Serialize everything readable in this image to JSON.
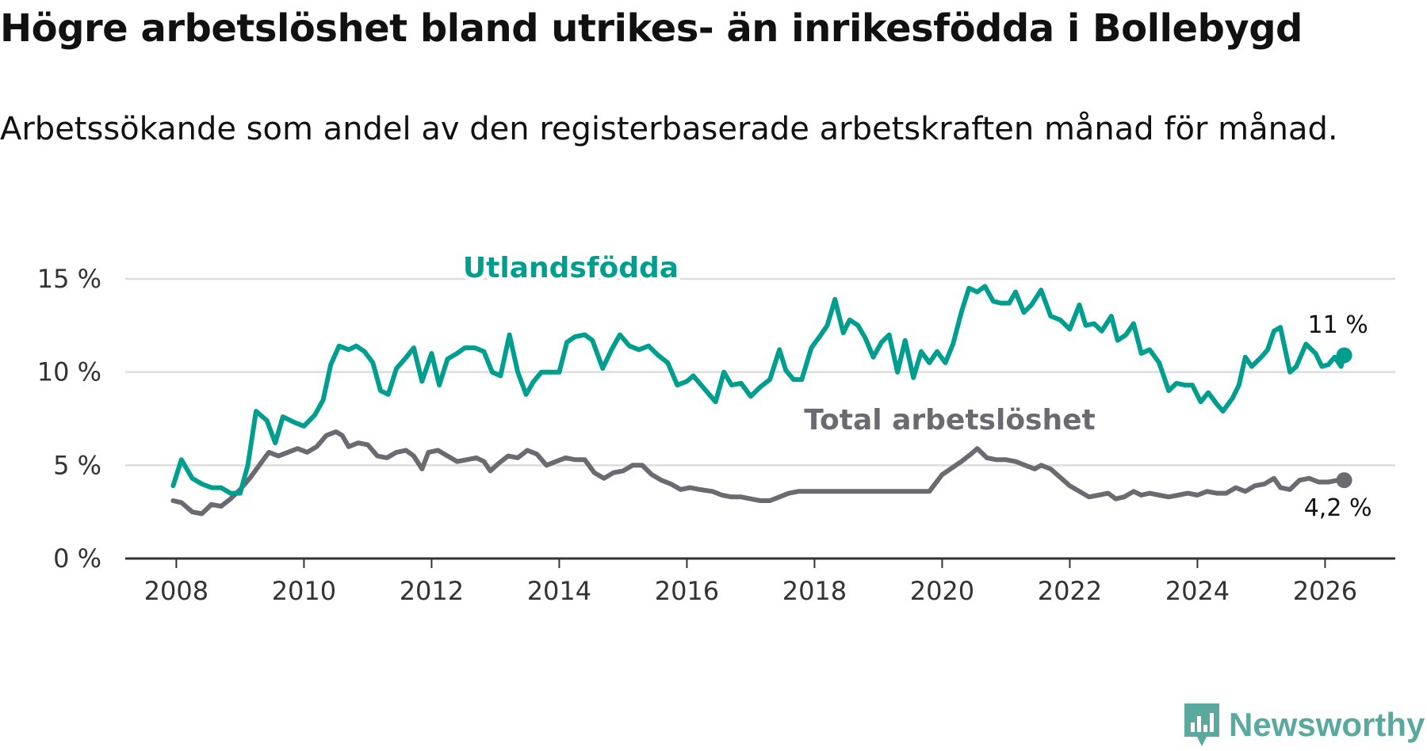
{
  "title": "Högre arbetslöshet bland utrikes- än inrikesfödda i Bollebygd",
  "subtitle": "Arbetssökande som andel av den registerbaserade arbetskraften månad för månad.",
  "brand": {
    "name": "Newsworthy",
    "icon": "newsworthy-logo-icon"
  },
  "colors": {
    "utlandsfodda": "#009e8e",
    "total": "#6a6a70",
    "grid": "#dddddd",
    "axis": "#333333",
    "brand": "#5aa99e"
  },
  "chart_data": {
    "type": "line",
    "title": "Högre arbetslöshet bland utrikes- än inrikesfödda i Bollebygd",
    "xlabel": "",
    "ylabel": "",
    "xlim": [
      2007.2,
      2027.1
    ],
    "ylim": [
      0,
      15
    ],
    "x_ticks": [
      2008,
      2010,
      2012,
      2014,
      2016,
      2018,
      2020,
      2022,
      2024,
      2026
    ],
    "x_tick_labels": [
      "2008",
      "2010",
      "2012",
      "2014",
      "2016",
      "2018",
      "2020",
      "2022",
      "2024",
      "2026"
    ],
    "y_ticks": [
      0,
      5,
      10,
      15
    ],
    "y_tick_labels": [
      "0 %",
      "5 %",
      "10 %",
      "15 %"
    ],
    "grid": true,
    "series": [
      {
        "name": "Utlandsfödda",
        "label": "Utlandsfödda",
        "end_label": "11 %",
        "points": [
          [
            2007.95,
            3.9
          ],
          [
            2008.08,
            5.3
          ],
          [
            2008.25,
            4.3
          ],
          [
            2008.4,
            4.0
          ],
          [
            2008.55,
            3.8
          ],
          [
            2008.7,
            3.8
          ],
          [
            2008.85,
            3.5
          ],
          [
            2009.0,
            3.5
          ],
          [
            2009.12,
            5.0
          ],
          [
            2009.25,
            7.9
          ],
          [
            2009.42,
            7.4
          ],
          [
            2009.55,
            6.2
          ],
          [
            2009.67,
            7.6
          ],
          [
            2009.85,
            7.3
          ],
          [
            2010.0,
            7.1
          ],
          [
            2010.17,
            7.7
          ],
          [
            2010.3,
            8.5
          ],
          [
            2010.42,
            10.4
          ],
          [
            2010.55,
            11.4
          ],
          [
            2010.7,
            11.2
          ],
          [
            2010.82,
            11.4
          ],
          [
            2010.95,
            11.1
          ],
          [
            2011.08,
            10.5
          ],
          [
            2011.2,
            9.0
          ],
          [
            2011.32,
            8.8
          ],
          [
            2011.45,
            10.2
          ],
          [
            2011.58,
            10.7
          ],
          [
            2011.72,
            11.3
          ],
          [
            2011.85,
            9.5
          ],
          [
            2012.0,
            11.0
          ],
          [
            2012.12,
            9.3
          ],
          [
            2012.25,
            10.7
          ],
          [
            2012.4,
            11.0
          ],
          [
            2012.52,
            11.3
          ],
          [
            2012.68,
            11.3
          ],
          [
            2012.82,
            11.1
          ],
          [
            2012.95,
            10.0
          ],
          [
            2013.08,
            9.8
          ],
          [
            2013.22,
            12.0
          ],
          [
            2013.35,
            10.0
          ],
          [
            2013.48,
            8.8
          ],
          [
            2013.6,
            9.5
          ],
          [
            2013.72,
            10.0
          ],
          [
            2013.85,
            10.0
          ],
          [
            2014.0,
            10.0
          ],
          [
            2014.12,
            11.6
          ],
          [
            2014.25,
            11.9
          ],
          [
            2014.4,
            12.0
          ],
          [
            2014.52,
            11.7
          ],
          [
            2014.68,
            10.2
          ],
          [
            2014.82,
            11.2
          ],
          [
            2014.95,
            12.0
          ],
          [
            2015.1,
            11.4
          ],
          [
            2015.25,
            11.2
          ],
          [
            2015.4,
            11.4
          ],
          [
            2015.55,
            10.9
          ],
          [
            2015.7,
            10.5
          ],
          [
            2015.85,
            9.3
          ],
          [
            2016.0,
            9.5
          ],
          [
            2016.1,
            9.8
          ],
          [
            2016.2,
            9.4
          ],
          [
            2016.3,
            9.0
          ],
          [
            2016.45,
            8.4
          ],
          [
            2016.58,
            10.0
          ],
          [
            2016.7,
            9.3
          ],
          [
            2016.85,
            9.4
          ],
          [
            2017.0,
            8.7
          ],
          [
            2017.15,
            9.2
          ],
          [
            2017.3,
            9.6
          ],
          [
            2017.45,
            11.2
          ],
          [
            2017.55,
            10.1
          ],
          [
            2017.67,
            9.6
          ],
          [
            2017.8,
            9.6
          ],
          [
            2017.95,
            11.3
          ],
          [
            2018.1,
            12.0
          ],
          [
            2018.2,
            12.5
          ],
          [
            2018.32,
            13.9
          ],
          [
            2018.45,
            12.1
          ],
          [
            2018.55,
            12.8
          ],
          [
            2018.68,
            12.5
          ],
          [
            2018.8,
            11.8
          ],
          [
            2018.92,
            10.8
          ],
          [
            2019.05,
            11.6
          ],
          [
            2019.17,
            12.0
          ],
          [
            2019.3,
            10.0
          ],
          [
            2019.42,
            11.7
          ],
          [
            2019.55,
            9.7
          ],
          [
            2019.67,
            11.1
          ],
          [
            2019.8,
            10.5
          ],
          [
            2019.92,
            11.1
          ],
          [
            2020.05,
            10.5
          ],
          [
            2020.17,
            11.5
          ],
          [
            2020.3,
            13.2
          ],
          [
            2020.42,
            14.5
          ],
          [
            2020.55,
            14.3
          ],
          [
            2020.67,
            14.6
          ],
          [
            2020.8,
            13.8
          ],
          [
            2020.92,
            13.7
          ],
          [
            2021.05,
            13.7
          ],
          [
            2021.15,
            14.3
          ],
          [
            2021.28,
            13.2
          ],
          [
            2021.4,
            13.6
          ],
          [
            2021.55,
            14.4
          ],
          [
            2021.7,
            13.0
          ],
          [
            2021.85,
            12.8
          ],
          [
            2022.0,
            12.3
          ],
          [
            2022.15,
            13.6
          ],
          [
            2022.25,
            12.5
          ],
          [
            2022.38,
            12.6
          ],
          [
            2022.5,
            12.2
          ],
          [
            2022.65,
            13.0
          ],
          [
            2022.75,
            11.7
          ],
          [
            2022.88,
            12.0
          ],
          [
            2023.0,
            12.6
          ],
          [
            2023.12,
            11.0
          ],
          [
            2023.25,
            11.2
          ],
          [
            2023.4,
            10.5
          ],
          [
            2023.55,
            9.0
          ],
          [
            2023.67,
            9.4
          ],
          [
            2023.8,
            9.3
          ],
          [
            2023.92,
            9.3
          ],
          [
            2024.05,
            8.4
          ],
          [
            2024.17,
            8.9
          ],
          [
            2024.3,
            8.3
          ],
          [
            2024.4,
            7.9
          ],
          [
            2024.55,
            8.6
          ],
          [
            2024.65,
            9.3
          ],
          [
            2024.75,
            10.8
          ],
          [
            2024.85,
            10.3
          ],
          [
            2025.0,
            10.8
          ],
          [
            2025.1,
            11.2
          ],
          [
            2025.2,
            12.2
          ],
          [
            2025.3,
            12.4
          ],
          [
            2025.45,
            10.0
          ],
          [
            2025.55,
            10.3
          ],
          [
            2025.7,
            11.5
          ],
          [
            2025.85,
            11.0
          ],
          [
            2025.95,
            10.3
          ],
          [
            2026.05,
            10.4
          ],
          [
            2026.15,
            10.8
          ],
          [
            2026.25,
            10.3
          ],
          [
            2026.3,
            10.9
          ]
        ]
      },
      {
        "name": "Total arbetslöshet",
        "label": "Total arbetslöshet",
        "end_label": "4,2 %",
        "points": [
          [
            2007.95,
            3.1
          ],
          [
            2008.08,
            3.0
          ],
          [
            2008.25,
            2.5
          ],
          [
            2008.4,
            2.4
          ],
          [
            2008.55,
            2.9
          ],
          [
            2008.7,
            2.8
          ],
          [
            2008.85,
            3.2
          ],
          [
            2009.0,
            3.7
          ],
          [
            2009.15,
            4.3
          ],
          [
            2009.3,
            5.0
          ],
          [
            2009.45,
            5.7
          ],
          [
            2009.6,
            5.5
          ],
          [
            2009.75,
            5.7
          ],
          [
            2009.9,
            5.9
          ],
          [
            2010.05,
            5.7
          ],
          [
            2010.2,
            6.0
          ],
          [
            2010.35,
            6.6
          ],
          [
            2010.5,
            6.8
          ],
          [
            2010.6,
            6.6
          ],
          [
            2010.7,
            6.0
          ],
          [
            2010.85,
            6.2
          ],
          [
            2011.0,
            6.1
          ],
          [
            2011.15,
            5.5
          ],
          [
            2011.3,
            5.4
          ],
          [
            2011.45,
            5.7
          ],
          [
            2011.6,
            5.8
          ],
          [
            2011.72,
            5.5
          ],
          [
            2011.85,
            4.8
          ],
          [
            2011.95,
            5.7
          ],
          [
            2012.1,
            5.8
          ],
          [
            2012.25,
            5.5
          ],
          [
            2012.4,
            5.2
          ],
          [
            2012.55,
            5.3
          ],
          [
            2012.7,
            5.4
          ],
          [
            2012.82,
            5.2
          ],
          [
            2012.92,
            4.7
          ],
          [
            2013.05,
            5.1
          ],
          [
            2013.2,
            5.5
          ],
          [
            2013.35,
            5.4
          ],
          [
            2013.5,
            5.8
          ],
          [
            2013.65,
            5.6
          ],
          [
            2013.8,
            5.0
          ],
          [
            2013.95,
            5.2
          ],
          [
            2014.1,
            5.4
          ],
          [
            2014.25,
            5.3
          ],
          [
            2014.4,
            5.3
          ],
          [
            2014.55,
            4.6
          ],
          [
            2014.7,
            4.3
          ],
          [
            2014.85,
            4.6
          ],
          [
            2015.0,
            4.7
          ],
          [
            2015.15,
            5.0
          ],
          [
            2015.3,
            5.0
          ],
          [
            2015.45,
            4.5
          ],
          [
            2015.6,
            4.2
          ],
          [
            2015.75,
            4.0
          ],
          [
            2015.9,
            3.7
          ],
          [
            2016.05,
            3.8
          ],
          [
            2016.2,
            3.7
          ],
          [
            2016.4,
            3.6
          ],
          [
            2016.55,
            3.4
          ],
          [
            2016.7,
            3.3
          ],
          [
            2016.85,
            3.3
          ],
          [
            2017.0,
            3.2
          ],
          [
            2017.15,
            3.1
          ],
          [
            2017.3,
            3.1
          ],
          [
            2017.45,
            3.3
          ],
          [
            2017.6,
            3.5
          ],
          [
            2017.75,
            3.6
          ],
          [
            2017.95,
            3.6
          ],
          [
            2019.8,
            3.6
          ],
          [
            2020.0,
            4.5
          ],
          [
            2020.3,
            5.2
          ],
          [
            2020.45,
            5.6
          ],
          [
            2020.55,
            5.9
          ],
          [
            2020.7,
            5.4
          ],
          [
            2020.85,
            5.3
          ],
          [
            2021.0,
            5.3
          ],
          [
            2021.15,
            5.2
          ],
          [
            2021.3,
            5.0
          ],
          [
            2021.45,
            4.8
          ],
          [
            2021.55,
            5.0
          ],
          [
            2021.7,
            4.8
          ],
          [
            2022.0,
            3.9
          ],
          [
            2022.3,
            3.3
          ],
          [
            2022.45,
            3.4
          ],
          [
            2022.6,
            3.5
          ],
          [
            2022.72,
            3.2
          ],
          [
            2022.85,
            3.3
          ],
          [
            2023.0,
            3.6
          ],
          [
            2023.12,
            3.4
          ],
          [
            2023.25,
            3.5
          ],
          [
            2023.4,
            3.4
          ],
          [
            2023.55,
            3.3
          ],
          [
            2023.7,
            3.4
          ],
          [
            2023.85,
            3.5
          ],
          [
            2024.0,
            3.4
          ],
          [
            2024.15,
            3.6
          ],
          [
            2024.3,
            3.5
          ],
          [
            2024.45,
            3.5
          ],
          [
            2024.6,
            3.8
          ],
          [
            2024.75,
            3.6
          ],
          [
            2024.9,
            3.9
          ],
          [
            2025.05,
            4.0
          ],
          [
            2025.2,
            4.3
          ],
          [
            2025.3,
            3.8
          ],
          [
            2025.45,
            3.7
          ],
          [
            2025.6,
            4.2
          ],
          [
            2025.75,
            4.3
          ],
          [
            2025.9,
            4.1
          ],
          [
            2026.05,
            4.1
          ],
          [
            2026.2,
            4.2
          ],
          [
            2026.3,
            4.2
          ]
        ]
      }
    ]
  }
}
